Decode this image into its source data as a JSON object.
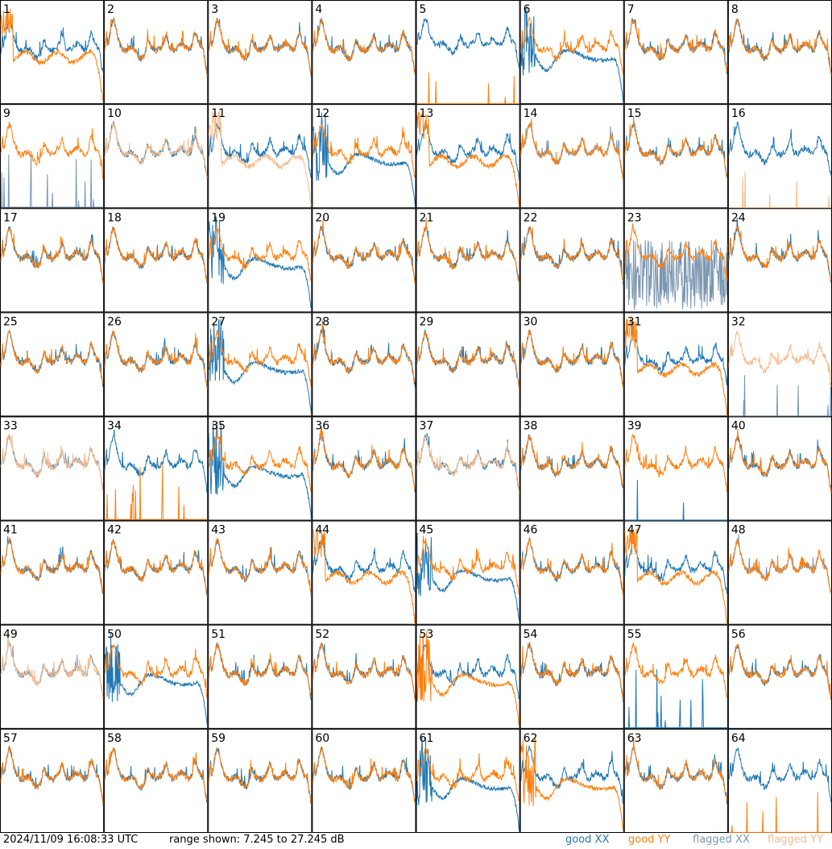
{
  "footer": {
    "timestamp": "2024/11/09 16:08:33 UTC",
    "range_text": "range shown: 7.245 to 27.245 dB"
  },
  "legend": [
    {
      "label": "good XX",
      "color": "#1f77b4"
    },
    {
      "label": "good YY",
      "color": "#ff7f0e"
    },
    {
      "label": "flagged XX",
      "color": "#7a96b0"
    },
    {
      "label": "flagged YY",
      "color": "#f7bb8c"
    }
  ],
  "chart_data": {
    "type": "line",
    "title": "",
    "units": "dB",
    "ylim": [
      7.245,
      27.245
    ],
    "grid_rows": 8,
    "grid_cols": 8,
    "panels": [
      {
        "id": "1",
        "xx": "good",
        "yy": "good",
        "xx_shape": "normal",
        "yy_shape": "rolloff"
      },
      {
        "id": "2",
        "xx": "good",
        "yy": "good",
        "xx_shape": "normal",
        "yy_shape": "normal"
      },
      {
        "id": "3",
        "xx": "good",
        "yy": "good",
        "xx_shape": "normal",
        "yy_shape": "normal"
      },
      {
        "id": "4",
        "xx": "good",
        "yy": "good",
        "xx_shape": "normal",
        "yy_shape": "normal"
      },
      {
        "id": "5",
        "xx": "good",
        "yy": "good",
        "xx_shape": "highdip",
        "yy_shape": "flatline"
      },
      {
        "id": "6",
        "xx": "good",
        "yy": "good",
        "xx_shape": "lowcurve",
        "yy_shape": "normal"
      },
      {
        "id": "7",
        "xx": "good",
        "yy": "good",
        "xx_shape": "normal",
        "yy_shape": "normal"
      },
      {
        "id": "8",
        "xx": "good",
        "yy": "good",
        "xx_shape": "normal",
        "yy_shape": "normal"
      },
      {
        "id": "9",
        "xx": "flagged",
        "yy": "good",
        "xx_shape": "spikes",
        "yy_shape": "normal"
      },
      {
        "id": "10",
        "xx": "good",
        "yy": "flagged",
        "xx_shape": "normal",
        "yy_shape": "normal"
      },
      {
        "id": "11",
        "xx": "good",
        "yy": "flagged",
        "xx_shape": "normal",
        "yy_shape": "rolloff"
      },
      {
        "id": "12",
        "xx": "good",
        "yy": "good",
        "xx_shape": "lowcurve",
        "yy_shape": "normal"
      },
      {
        "id": "13",
        "xx": "good",
        "yy": "good",
        "xx_shape": "normal",
        "yy_shape": "rolloff"
      },
      {
        "id": "14",
        "xx": "flagged",
        "yy": "good",
        "xx_shape": "normal",
        "yy_shape": "normal"
      },
      {
        "id": "15",
        "xx": "good",
        "yy": "good",
        "xx_shape": "normal",
        "yy_shape": "normal"
      },
      {
        "id": "16",
        "xx": "good",
        "yy": "flagged",
        "xx_shape": "normal",
        "yy_shape": "flatline"
      },
      {
        "id": "17",
        "xx": "good",
        "yy": "good",
        "xx_shape": "normal",
        "yy_shape": "normal"
      },
      {
        "id": "18",
        "xx": "good",
        "yy": "good",
        "xx_shape": "normal",
        "yy_shape": "normal"
      },
      {
        "id": "19",
        "xx": "good",
        "yy": "good",
        "xx_shape": "lowcurve",
        "yy_shape": "normal"
      },
      {
        "id": "20",
        "xx": "good",
        "yy": "good",
        "xx_shape": "normal",
        "yy_shape": "normal"
      },
      {
        "id": "21",
        "xx": "good",
        "yy": "good",
        "xx_shape": "normal",
        "yy_shape": "normal"
      },
      {
        "id": "22",
        "xx": "good",
        "yy": "good",
        "xx_shape": "normal",
        "yy_shape": "normal"
      },
      {
        "id": "23",
        "xx": "flagged",
        "yy": "good",
        "xx_shape": "noisy",
        "yy_shape": "normal"
      },
      {
        "id": "24",
        "xx": "good",
        "yy": "good",
        "xx_shape": "normal",
        "yy_shape": "normal"
      },
      {
        "id": "25",
        "xx": "good",
        "yy": "good",
        "xx_shape": "normal",
        "yy_shape": "normal"
      },
      {
        "id": "26",
        "xx": "good",
        "yy": "good",
        "xx_shape": "normal",
        "yy_shape": "normal"
      },
      {
        "id": "27",
        "xx": "good",
        "yy": "good",
        "xx_shape": "lowcurve",
        "yy_shape": "normal"
      },
      {
        "id": "28",
        "xx": "good",
        "yy": "good",
        "xx_shape": "normal",
        "yy_shape": "normal"
      },
      {
        "id": "29",
        "xx": "good",
        "yy": "good",
        "xx_shape": "normal",
        "yy_shape": "normal"
      },
      {
        "id": "30",
        "xx": "good",
        "yy": "good",
        "xx_shape": "normal",
        "yy_shape": "normal"
      },
      {
        "id": "31",
        "xx": "good",
        "yy": "good",
        "xx_shape": "normal",
        "yy_shape": "rolloff"
      },
      {
        "id": "32",
        "xx": "flagged",
        "yy": "flagged",
        "xx_shape": "flatline",
        "yy_shape": "normal"
      },
      {
        "id": "33",
        "xx": "flagged",
        "yy": "flagged",
        "xx_shape": "normal",
        "yy_shape": "normal"
      },
      {
        "id": "34",
        "xx": "good",
        "yy": "good",
        "xx_shape": "normal",
        "yy_shape": "spikes"
      },
      {
        "id": "35",
        "xx": "good",
        "yy": "good",
        "xx_shape": "lowcurve",
        "yy_shape": "normal"
      },
      {
        "id": "36",
        "xx": "good",
        "yy": "good",
        "xx_shape": "normal",
        "yy_shape": "normal"
      },
      {
        "id": "37",
        "xx": "good",
        "yy": "flagged",
        "xx_shape": "normal",
        "yy_shape": "normal"
      },
      {
        "id": "38",
        "xx": "good",
        "yy": "good",
        "xx_shape": "normal",
        "yy_shape": "normal"
      },
      {
        "id": "39",
        "xx": "good",
        "yy": "good",
        "xx_shape": "flatline",
        "yy_shape": "normal"
      },
      {
        "id": "40",
        "xx": "good",
        "yy": "good",
        "xx_shape": "normal",
        "yy_shape": "normal"
      },
      {
        "id": "41",
        "xx": "good",
        "yy": "good",
        "xx_shape": "normal",
        "yy_shape": "normal"
      },
      {
        "id": "42",
        "xx": "good",
        "yy": "good",
        "xx_shape": "normal",
        "yy_shape": "normal"
      },
      {
        "id": "43",
        "xx": "good",
        "yy": "good",
        "xx_shape": "normal",
        "yy_shape": "normal"
      },
      {
        "id": "44",
        "xx": "good",
        "yy": "good",
        "xx_shape": "normal",
        "yy_shape": "rolloff"
      },
      {
        "id": "45",
        "xx": "good",
        "yy": "good",
        "xx_shape": "lowcurve",
        "yy_shape": "normal"
      },
      {
        "id": "46",
        "xx": "good",
        "yy": "good",
        "xx_shape": "normal",
        "yy_shape": "normal"
      },
      {
        "id": "47",
        "xx": "good",
        "yy": "good",
        "xx_shape": "normal",
        "yy_shape": "rolloff"
      },
      {
        "id": "48",
        "xx": "flagged",
        "yy": "good",
        "xx_shape": "normal",
        "yy_shape": "normal"
      },
      {
        "id": "49",
        "xx": "flagged",
        "yy": "flagged",
        "xx_shape": "normal",
        "yy_shape": "normal"
      },
      {
        "id": "50",
        "xx": "good",
        "yy": "good",
        "xx_shape": "lowcurve",
        "yy_shape": "normal"
      },
      {
        "id": "51",
        "xx": "good",
        "yy": "good",
        "xx_shape": "normal",
        "yy_shape": "normal"
      },
      {
        "id": "52",
        "xx": "good",
        "yy": "good",
        "xx_shape": "normal",
        "yy_shape": "normal"
      },
      {
        "id": "53",
        "xx": "good",
        "yy": "good",
        "xx_shape": "normal",
        "yy_shape": "lowcurve"
      },
      {
        "id": "54",
        "xx": "good",
        "yy": "good",
        "xx_shape": "normal",
        "yy_shape": "normal"
      },
      {
        "id": "55",
        "xx": "good",
        "yy": "good",
        "xx_shape": "spikes",
        "yy_shape": "normal"
      },
      {
        "id": "56",
        "xx": "good",
        "yy": "good",
        "xx_shape": "normal",
        "yy_shape": "normal"
      },
      {
        "id": "57",
        "xx": "good",
        "yy": "good",
        "xx_shape": "normal",
        "yy_shape": "normal"
      },
      {
        "id": "58",
        "xx": "good",
        "yy": "good",
        "xx_shape": "normal",
        "yy_shape": "normal"
      },
      {
        "id": "59",
        "xx": "good",
        "yy": "good",
        "xx_shape": "normal",
        "yy_shape": "normal"
      },
      {
        "id": "60",
        "xx": "good",
        "yy": "good",
        "xx_shape": "normal",
        "yy_shape": "normal"
      },
      {
        "id": "61",
        "xx": "good",
        "yy": "good",
        "xx_shape": "lowcurve",
        "yy_shape": "normal"
      },
      {
        "id": "62",
        "xx": "good",
        "yy": "good",
        "xx_shape": "normal",
        "yy_shape": "lowcurve"
      },
      {
        "id": "63",
        "xx": "good",
        "yy": "good",
        "xx_shape": "normal",
        "yy_shape": "normal"
      },
      {
        "id": "64",
        "xx": "good",
        "yy": "good",
        "xx_shape": "normal",
        "yy_shape": "flatline"
      }
    ]
  }
}
